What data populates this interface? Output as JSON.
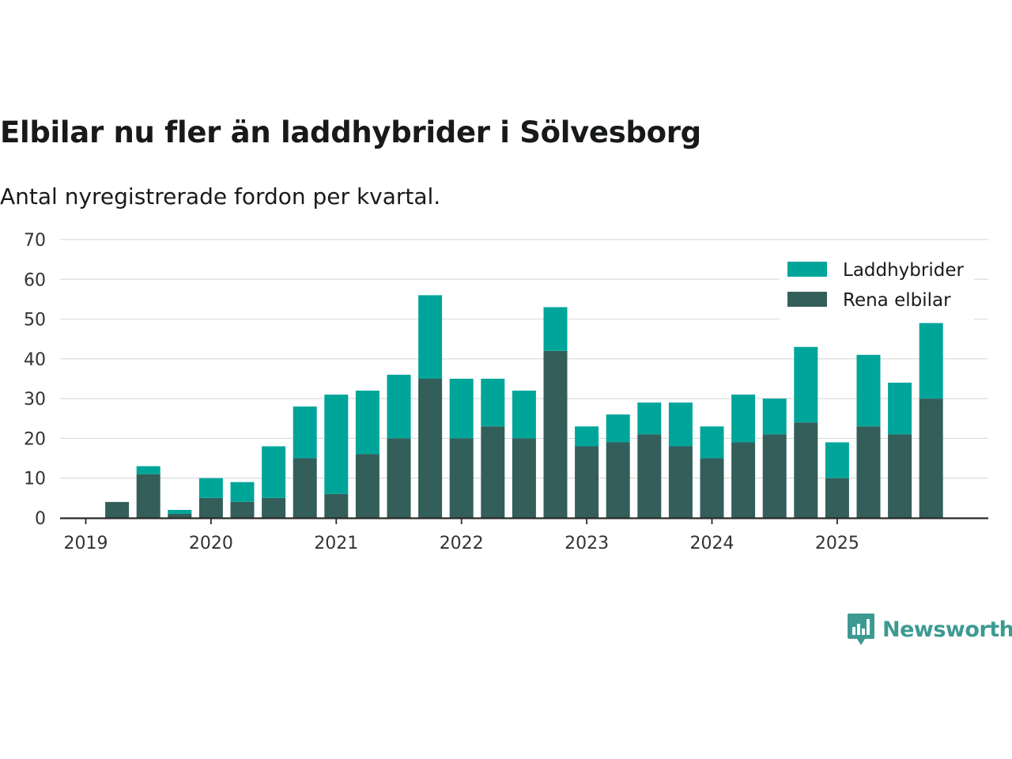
{
  "chart_data": {
    "type": "bar",
    "stacked": true,
    "title": "Elbilar nu fler än laddhybrider i Sölvesborg",
    "subtitle": "Antal nyregistrerade fordon per kvartal.",
    "xlabel": "",
    "ylabel": "",
    "ylim": [
      0,
      70
    ],
    "yticks": [
      0,
      10,
      20,
      30,
      40,
      50,
      60,
      70
    ],
    "xticks": [
      "2019",
      "2020",
      "2021",
      "2022",
      "2023",
      "2024",
      "2025"
    ],
    "categories": [
      "2019 Q1",
      "2019 Q2",
      "2019 Q3",
      "2019 Q4",
      "2020 Q1",
      "2020 Q2",
      "2020 Q3",
      "2020 Q4",
      "2021 Q1",
      "2021 Q2",
      "2021 Q3",
      "2021 Q4",
      "2022 Q1",
      "2022 Q2",
      "2022 Q3",
      "2022 Q4",
      "2023 Q1",
      "2023 Q2",
      "2023 Q3",
      "2023 Q4",
      "2024 Q1",
      "2024 Q2",
      "2024 Q3",
      "2024 Q4",
      "2025 Q1",
      "2025 Q2",
      "2025 Q3",
      "2025 Q4"
    ],
    "series": [
      {
        "name": "Rena elbilar",
        "color": "#335e5a",
        "values": [
          0,
          4,
          11,
          1,
          5,
          4,
          5,
          15,
          6,
          16,
          20,
          35,
          20,
          23,
          20,
          42,
          18,
          19,
          21,
          18,
          15,
          19,
          21,
          24,
          10,
          23,
          21,
          30
        ]
      },
      {
        "name": "Laddhybrider",
        "color": "#00a59a",
        "values": [
          0,
          0,
          2,
          1,
          5,
          5,
          13,
          13,
          25,
          16,
          16,
          21,
          15,
          12,
          12,
          11,
          5,
          7,
          8,
          11,
          8,
          12,
          9,
          19,
          9,
          18,
          13,
          19
        ]
      }
    ],
    "legend": {
      "position": "top-right",
      "order": [
        "Laddhybrider",
        "Rena elbilar"
      ]
    },
    "grid": true
  },
  "brand": {
    "name": "Newsworthy",
    "color": "#3d9a93"
  }
}
